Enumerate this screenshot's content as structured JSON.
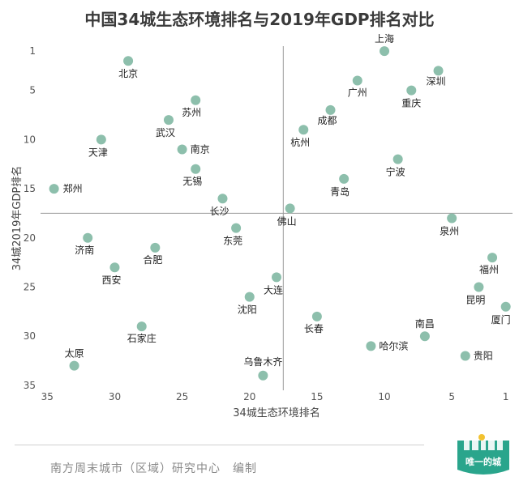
{
  "chart_data": {
    "type": "scatter",
    "title": "中国34城生态环境排名与2019年GDP排名对比",
    "xlabel": "34城生态环境排名",
    "ylabel": "34城2019年GDP排名",
    "xlim": [
      35.5,
      0.5
    ],
    "ylim": [
      0.5,
      35.5
    ],
    "x_reversed": true,
    "y_reversed": true,
    "x_ticks": [
      35,
      30,
      25,
      20,
      15,
      10,
      5,
      1
    ],
    "y_ticks": [
      1,
      5,
      10,
      15,
      20,
      25,
      30,
      35
    ],
    "reference_lines": {
      "x": 17.5,
      "y": 17.5
    },
    "point_color": "#8dbfac",
    "points": [
      {
        "name": "上海",
        "x": 10,
        "y": 1
      },
      {
        "name": "北京",
        "x": 29,
        "y": 2
      },
      {
        "name": "深圳",
        "x": 6,
        "y": 3
      },
      {
        "name": "广州",
        "x": 12,
        "y": 4
      },
      {
        "name": "重庆",
        "x": 8,
        "y": 5
      },
      {
        "name": "苏州",
        "x": 24,
        "y": 6
      },
      {
        "name": "成都",
        "x": 14,
        "y": 7
      },
      {
        "name": "武汉",
        "x": 26,
        "y": 8
      },
      {
        "name": "杭州",
        "x": 16,
        "y": 9
      },
      {
        "name": "天津",
        "x": 31,
        "y": 10
      },
      {
        "name": "南京",
        "x": 25,
        "y": 11
      },
      {
        "name": "宁波",
        "x": 9,
        "y": 12
      },
      {
        "name": "无锡",
        "x": 24,
        "y": 13
      },
      {
        "name": "青岛",
        "x": 13,
        "y": 14
      },
      {
        "name": "郑州",
        "x": 34.5,
        "y": 15
      },
      {
        "name": "长沙",
        "x": 22,
        "y": 16
      },
      {
        "name": "佛山",
        "x": 17,
        "y": 17
      },
      {
        "name": "泉州",
        "x": 5,
        "y": 18
      },
      {
        "name": "东莞",
        "x": 21,
        "y": 19
      },
      {
        "name": "济南",
        "x": 32,
        "y": 20
      },
      {
        "name": "合肥",
        "x": 27,
        "y": 21
      },
      {
        "name": "福州",
        "x": 2,
        "y": 22
      },
      {
        "name": "西安",
        "x": 30,
        "y": 23
      },
      {
        "name": "大连",
        "x": 18,
        "y": 24
      },
      {
        "name": "昆明",
        "x": 3,
        "y": 25
      },
      {
        "name": "沈阳",
        "x": 20,
        "y": 26
      },
      {
        "name": "厦门",
        "x": 1,
        "y": 27
      },
      {
        "name": "长春",
        "x": 15,
        "y": 28
      },
      {
        "name": "石家庄",
        "x": 28,
        "y": 29
      },
      {
        "name": "南昌",
        "x": 7,
        "y": 30
      },
      {
        "name": "哈尔滨",
        "x": 11,
        "y": 31
      },
      {
        "name": "贵阳",
        "x": 4,
        "y": 32
      },
      {
        "name": "太原",
        "x": 33,
        "y": 33
      },
      {
        "name": "乌鲁木齐",
        "x": 19,
        "y": 34
      }
    ]
  },
  "footer": {
    "credit": "南方周末城市（区域）研究中心　编制"
  },
  "logo": {
    "text": "唯一的城",
    "colors": {
      "bg": "#2aa58c",
      "sun": "#f2c230"
    }
  }
}
